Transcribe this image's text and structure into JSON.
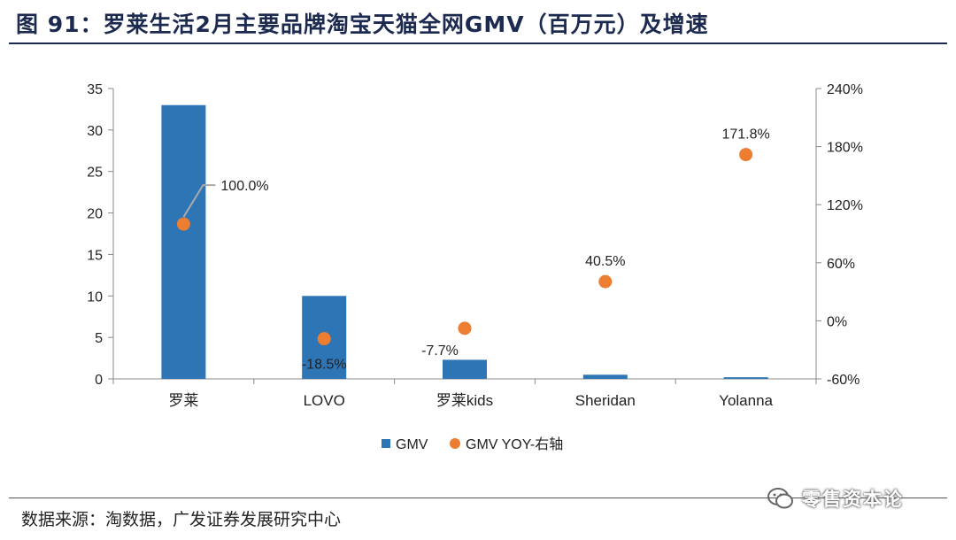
{
  "title": "图 91：罗莱生活2月主要品牌淘宝天猫全网GMV（百万元）及增速",
  "source": "数据来源：淘数据，广发证券发展研究中心",
  "watermark": "零售资本论",
  "colors": {
    "bar": "#2e75b6",
    "dot": "#ed7d31",
    "title": "#1d2a50"
  },
  "chart_data": {
    "type": "bar",
    "categories": [
      "罗莱",
      "LOVO",
      "罗莱kids",
      "Sheridan",
      "Yolanna"
    ],
    "series": [
      {
        "name": "GMV",
        "type": "bar",
        "axis": "left",
        "values": [
          33.0,
          10.0,
          2.3,
          0.5,
          0.2
        ]
      },
      {
        "name": "GMV YOY-右轴",
        "type": "scatter",
        "axis": "right",
        "values": [
          100.0,
          -18.5,
          -7.7,
          40.5,
          171.8
        ],
        "labels": [
          "100.0%",
          "-18.5%",
          "-7.7%",
          "40.5%",
          "171.8%"
        ]
      }
    ],
    "ylim": [
      0,
      35
    ],
    "yticks": [
      "0",
      "5",
      "10",
      "15",
      "20",
      "25",
      "30",
      "35"
    ],
    "y2lim": [
      -60,
      240
    ],
    "y2ticks": [
      "-60%",
      "0%",
      "60%",
      "120%",
      "180%",
      "240%"
    ],
    "legend_position": "bottom",
    "grid": false
  }
}
